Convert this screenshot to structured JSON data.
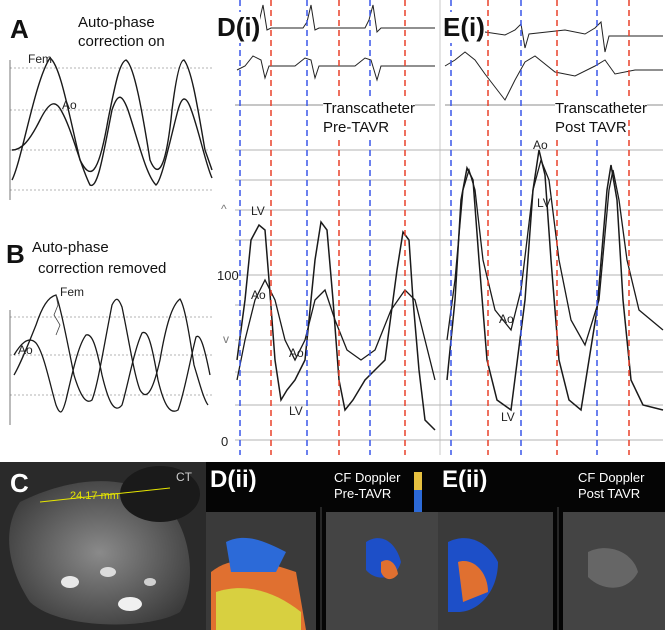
{
  "panelA": {
    "label": "A",
    "title": "Auto-phase correction on",
    "title_l1": "Auto-phase",
    "title_l2": "correction on",
    "fem": "Fem",
    "ao": "Ao"
  },
  "panelB": {
    "label": "B",
    "title_l1": "Auto-phase",
    "title_l2": "correction removed",
    "fem": "Fem",
    "ao": "Ao"
  },
  "panelD": {
    "label": "D(i)",
    "title_l1": "Transcatheter",
    "title_l2": "Pre-TAVR",
    "lv_top": "LV",
    "ao_left": "Ao",
    "ao_mid": "Ao",
    "lv_bottom": "LV"
  },
  "panelE": {
    "label": "E(i)",
    "title_l1": "Transcatheter",
    "title_l2": "Post TAVR",
    "ao_top": "Ao",
    "lv_top": "LV",
    "ao_mid": "Ao",
    "lv_bottom": "LV"
  },
  "axis": {
    "top_marker": "^",
    "mid_value": "100",
    "low_marker": "v",
    "zero": "0"
  },
  "panelC": {
    "label": "C",
    "modality": "CT",
    "measurement": "24.17 mm"
  },
  "panelDii": {
    "label": "D(ii)",
    "title_l1": "CF Doppler",
    "title_l2": "Pre-TAVR"
  },
  "panelEii": {
    "label": "E(ii)",
    "title_l1": "CF Doppler",
    "title_l2": "Post TAVR"
  },
  "colors": {
    "blue_marker": "#3a57e8",
    "red_marker": "#e8402a",
    "grid": "#9a9a9a",
    "trace": "#1a1a1a",
    "measure": "#e6e600"
  }
}
